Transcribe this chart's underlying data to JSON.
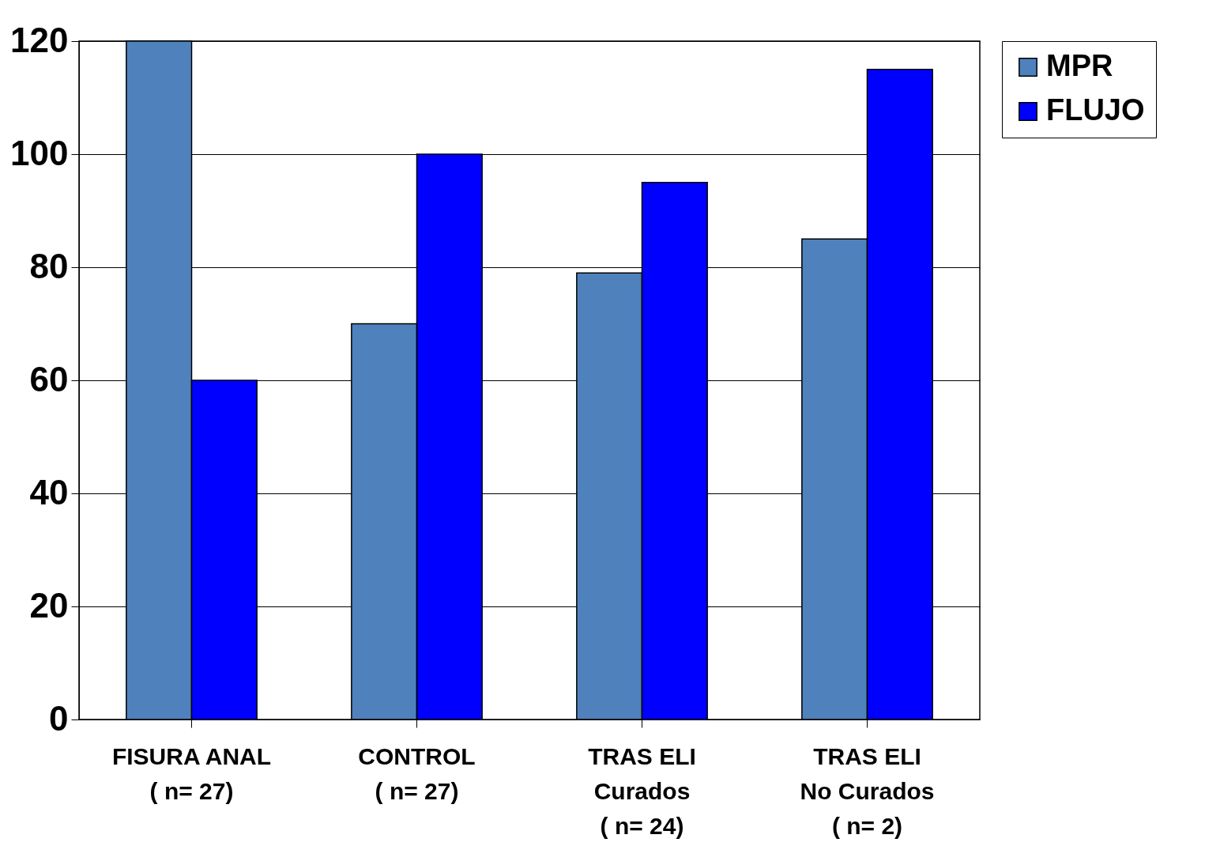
{
  "chart_data": {
    "type": "bar",
    "categories": [
      "FISURA ANAL\n( n= 27)",
      "CONTROL\n( n= 27)",
      "TRAS ELI\nCurados\n( n= 24)",
      "TRAS ELI\nNo Curados\n( n= 2)"
    ],
    "series": [
      {
        "name": "MPR",
        "color": "#4f81bd",
        "values": [
          120,
          70,
          79,
          85
        ]
      },
      {
        "name": "FLUJO",
        "color": "#0000ff",
        "values": [
          60,
          100,
          95,
          115
        ]
      }
    ],
    "ylim": [
      0,
      120
    ],
    "yticks": [
      0,
      20,
      40,
      60,
      80,
      100,
      120
    ],
    "grid": "y",
    "legend": "right"
  }
}
